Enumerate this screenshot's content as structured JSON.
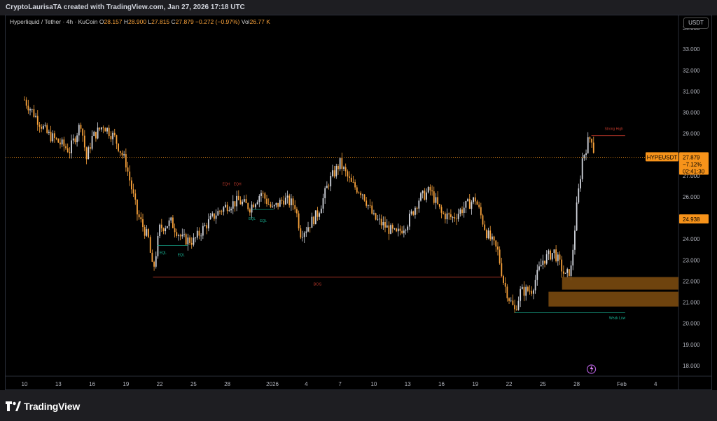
{
  "header": {
    "attribution": "CryptoLaurisaTA created with TradingView.com, Jan 27, 2026 17:18 UTC"
  },
  "legend": {
    "symbol": "Hyperliquid / Tether · 4h · KuCoin",
    "open_label": "O",
    "open": "28.157",
    "high_label": "H",
    "high": "28.900",
    "low_label": "L",
    "low": "27.815",
    "close_label": "C",
    "close": "27.879",
    "change": "−0.272 (−0.97%)",
    "vol_label": "Vol",
    "volume": "26.77 K"
  },
  "currency": "USDT",
  "footer": {
    "brand": "TradingView"
  },
  "colors": {
    "up": "#d1d4dc",
    "down": "#f7a13a",
    "accent": "#f7931a",
    "zone": "#7a4a10",
    "bos": "#c0392b",
    "low_line": "#1abc9c"
  },
  "chart_data": {
    "type": "candlestick",
    "timeframe": "4h",
    "ylim": [
      17.5,
      34.6
    ],
    "y_ticks": [
      18,
      19,
      20,
      21,
      22,
      23,
      24,
      25,
      26,
      27,
      28,
      29,
      30,
      31,
      32,
      33,
      34
    ],
    "y_tick_labels": [
      "18.000",
      "19.000",
      "20.000",
      "21.000",
      "22.000",
      "23.000",
      "24.000",
      "25.000",
      "26.000",
      "27.000",
      "28.000",
      "29.000",
      "30.000",
      "31.000",
      "32.000",
      "33.000",
      "34.000"
    ],
    "x_tick_labels": [
      "10",
      "13",
      "16",
      "19",
      "22",
      "25",
      "28",
      "2026",
      "4",
      "7",
      "10",
      "13",
      "16",
      "19",
      "22",
      "25",
      "28",
      "Feb",
      "4"
    ],
    "x_tick_days": [
      0,
      3,
      6,
      9,
      12,
      15,
      18,
      22,
      25,
      28,
      31,
      34,
      37,
      40,
      43,
      46,
      49,
      53,
      56
    ],
    "bars_per_day": 6,
    "price_points": [
      [
        0,
        30.6
      ],
      [
        1,
        29.8
      ],
      [
        2,
        29.0
      ],
      [
        3,
        28.6
      ],
      [
        4,
        28.2
      ],
      [
        5,
        29.5
      ],
      [
        5.5,
        27.8
      ],
      [
        6,
        28.8
      ],
      [
        7,
        29.4
      ],
      [
        8,
        28.8
      ],
      [
        9,
        27.6
      ],
      [
        9.5,
        26.4
      ],
      [
        10,
        25.2
      ],
      [
        11,
        24.0
      ],
      [
        11.4,
        22.4
      ],
      [
        12,
        24.5
      ],
      [
        13,
        24.8
      ],
      [
        14,
        24.0
      ],
      [
        15,
        23.9
      ],
      [
        16,
        24.6
      ],
      [
        17,
        25.2
      ],
      [
        18,
        25.6
      ],
      [
        19,
        25.8
      ],
      [
        20,
        25.5
      ],
      [
        21,
        26.2
      ],
      [
        22,
        25.4
      ],
      [
        23,
        25.9
      ],
      [
        24,
        25.6
      ],
      [
        24.5,
        24.3
      ],
      [
        25,
        24.5
      ],
      [
        26,
        25.2
      ],
      [
        26.5,
        25.9
      ],
      [
        27,
        26.7
      ],
      [
        28,
        27.6
      ],
      [
        29,
        26.6
      ],
      [
        30,
        26.2
      ],
      [
        30.5,
        25.6
      ],
      [
        31,
        25.0
      ],
      [
        32,
        24.6
      ],
      [
        33,
        24.2
      ],
      [
        34,
        24.8
      ],
      [
        35,
        25.9
      ],
      [
        36,
        26.3
      ],
      [
        37,
        25.2
      ],
      [
        38,
        25.0
      ],
      [
        39,
        25.5
      ],
      [
        40,
        25.9
      ],
      [
        41,
        24.3
      ],
      [
        42,
        23.4
      ],
      [
        42.5,
        22.0
      ],
      [
        43,
        21.2
      ],
      [
        43.5,
        20.6
      ],
      [
        44,
        21.5
      ],
      [
        45,
        21.6
      ],
      [
        46,
        23.0
      ],
      [
        47,
        23.4
      ],
      [
        47.5,
        22.8
      ],
      [
        48,
        22.2
      ],
      [
        48.5,
        22.6
      ],
      [
        49,
        25.5
      ],
      [
        49.5,
        27.8
      ],
      [
        50,
        28.6
      ],
      [
        50.3,
        28.9
      ],
      [
        50.6,
        27.9
      ]
    ],
    "last_price": 27.879,
    "annotations": {
      "strong_high": {
        "label": "Strong High",
        "price": 28.9
      },
      "weak_low": {
        "label": "Weak Low",
        "price": 20.5
      },
      "bos": {
        "label": "BOS",
        "price": 22.2
      },
      "eqh": {
        "labels": [
          "EQH",
          "EQH"
        ],
        "price": 26.45
      },
      "eql": {
        "labels": [
          "EQL",
          "EQL",
          "EQL",
          "EQL"
        ],
        "price": 23.6
      },
      "demand_zones": [
        [
          21.6,
          22.2
        ],
        [
          20.8,
          21.5
        ]
      ]
    },
    "price_labels": [
      {
        "text": "HYPEUSDT",
        "price": 27.879
      },
      {
        "text": "27.879",
        "price": 27.879
      },
      {
        "text": "−7.12%",
        "price": 27.879
      },
      {
        "text": "02:41:30",
        "price": 27.879
      },
      {
        "text": "24.938",
        "price": 24.938
      }
    ]
  }
}
